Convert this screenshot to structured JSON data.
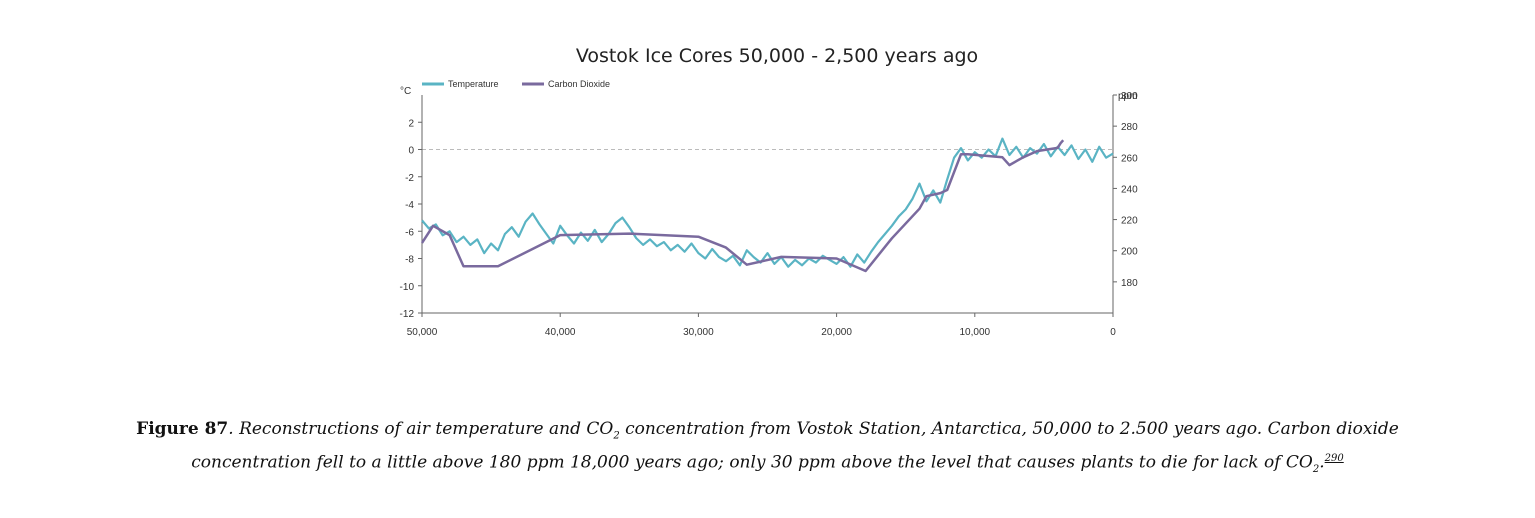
{
  "chart_data": {
    "type": "line",
    "title": "Vostok Ice Cores 50,000 - 2,500 years ago",
    "xlabel": "",
    "ylabel_left": "°C",
    "ylabel_right": "ppm",
    "xlim": [
      50000,
      0
    ],
    "ylim_left": [
      -12,
      4
    ],
    "ylim_right": [
      160,
      300
    ],
    "x_ticks": [
      50000,
      40000,
      30000,
      20000,
      10000,
      0
    ],
    "x_tick_labels": [
      "50,000",
      "40,000",
      "30,000",
      "20,000",
      "10,000",
      "0"
    ],
    "y_left_ticks": [
      2,
      0,
      -2,
      -4,
      -6,
      -8,
      -10,
      -12
    ],
    "y_left_tick_labels": [
      "2",
      "0",
      "-2",
      "-4",
      "-6",
      "-8",
      "-10",
      "-12"
    ],
    "y_right_ticks": [
      300,
      280,
      260,
      240,
      220,
      200,
      180
    ],
    "y_right_tick_labels": [
      "300",
      "280",
      "260",
      "240",
      "220",
      "200",
      "180"
    ],
    "legend": [
      "Temperature",
      "Carbon Dioxide"
    ],
    "legend_position": "top-left",
    "series": [
      {
        "name": "Temperature",
        "axis": "left",
        "color": "#5ab4c4",
        "x": [
          50000,
          49500,
          49000,
          48500,
          48000,
          47500,
          47000,
          46500,
          46000,
          45500,
          45000,
          44500,
          44000,
          43500,
          43000,
          42500,
          42000,
          41500,
          41000,
          40500,
          40000,
          39500,
          39000,
          38500,
          38000,
          37500,
          37000,
          36500,
          36000,
          35500,
          35000,
          34500,
          34000,
          33500,
          33000,
          32500,
          32000,
          31500,
          31000,
          30500,
          30000,
          29500,
          29000,
          28500,
          28000,
          27500,
          27000,
          26500,
          26000,
          25500,
          25000,
          24500,
          24000,
          23500,
          23000,
          22500,
          22000,
          21500,
          21000,
          20500,
          20000,
          19500,
          19000,
          18500,
          18000,
          17500,
          17000,
          16500,
          16000,
          15500,
          15000,
          14500,
          14000,
          13500,
          13000,
          12500,
          12000,
          11500,
          11000,
          10500,
          10000,
          9500,
          9000,
          8500,
          8000,
          7500,
          7000,
          6500,
          6000,
          5500,
          5000,
          4500,
          4000,
          3500,
          3000,
          2500,
          2000,
          1500,
          1000,
          500,
          0
        ],
        "values": [
          -5.2,
          -5.8,
          -5.5,
          -6.3,
          -6.0,
          -6.8,
          -6.4,
          -7.0,
          -6.6,
          -7.6,
          -6.9,
          -7.4,
          -6.2,
          -5.7,
          -6.4,
          -5.3,
          -4.7,
          -5.5,
          -6.2,
          -6.9,
          -5.6,
          -6.3,
          -6.9,
          -6.1,
          -6.7,
          -5.9,
          -6.8,
          -6.2,
          -5.4,
          -5.0,
          -5.7,
          -6.5,
          -7.0,
          -6.6,
          -7.1,
          -6.8,
          -7.4,
          -7.0,
          -7.5,
          -6.9,
          -7.6,
          -8.0,
          -7.3,
          -7.9,
          -8.2,
          -7.8,
          -8.5,
          -7.4,
          -7.9,
          -8.3,
          -7.6,
          -8.4,
          -7.9,
          -8.6,
          -8.1,
          -8.5,
          -8.0,
          -8.3,
          -7.8,
          -8.1,
          -8.4,
          -7.9,
          -8.6,
          -7.7,
          -8.3,
          -7.5,
          -6.8,
          -6.2,
          -5.6,
          -4.9,
          -4.4,
          -3.6,
          -2.5,
          -3.8,
          -3.0,
          -3.9,
          -2.2,
          -0.6,
          0.1,
          -0.8,
          -0.2,
          -0.6,
          0.0,
          -0.5,
          0.8,
          -0.4,
          0.2,
          -0.6,
          0.1,
          -0.3,
          0.4,
          -0.5,
          0.2,
          -0.4,
          0.3,
          -0.7,
          0.0,
          -0.9,
          0.2,
          -0.6,
          -0.3
        ],
        "values_note": "approximate"
      },
      {
        "name": "Carbon Dioxide",
        "axis": "right",
        "color": "#7a6a9e",
        "x": [
          50000,
          49200,
          48000,
          47000,
          44500,
          40000,
          35000,
          30000,
          28000,
          26500,
          24000,
          20000,
          17900,
          16000,
          14000,
          13500,
          12500,
          12000,
          11000,
          10500,
          8000,
          7500,
          6500,
          5500,
          4000,
          3800,
          3600
        ],
        "values": [
          205,
          216,
          210,
          190,
          190,
          210,
          211,
          209,
          202,
          191,
          196,
          195,
          187,
          208,
          227,
          235,
          237,
          239,
          262,
          262,
          260,
          255,
          260,
          264,
          266,
          269,
          271
        ]
      }
    ]
  },
  "caption": {
    "label": "Figure 87",
    "text_a": ". Reconstructions of air temperature and CO",
    "sub_a": "2",
    "text_b": " concentration from Vostok Station, Antarctica, 50,000 to 2.500 years ago. Carbon dioxide concentration fell to a little above 180 ppm 18,000 years ago; only 30 ppm above the level that causes plants to die for lack of CO",
    "sub_b": "2",
    "text_c": ".",
    "footnote": "290"
  }
}
